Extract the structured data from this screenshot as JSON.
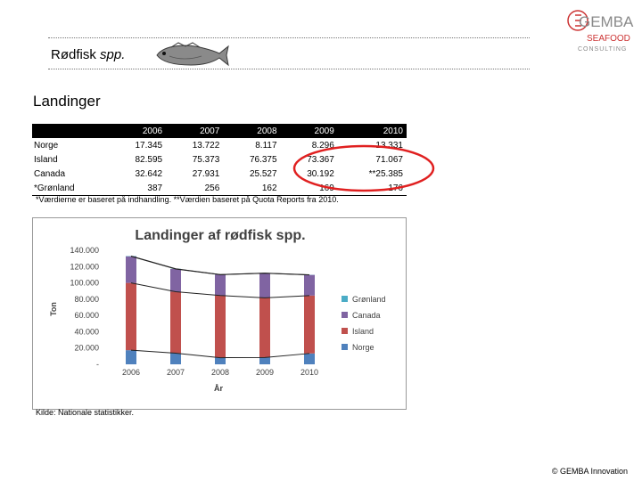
{
  "slide": {
    "species_name": "Rødfisk",
    "species_suffix": "spp.",
    "heading": "Landinger",
    "footnote": "*Værdierne er baseret på indhandling. **Værdien baseret på Quota Reports fra 2010.",
    "source": "Kilde: Nationale statistikker.",
    "copyright": "© GEMBA Innovation"
  },
  "logo": {
    "line1": "GEMBA",
    "line2": "SEAFOOD",
    "line3": "CONSULTING"
  },
  "table": {
    "headers": [
      "",
      "2006",
      "2007",
      "2008",
      "2009",
      "2010"
    ],
    "rows": [
      {
        "country": "Norge",
        "values": [
          "17.345",
          "13.722",
          "8.117",
          "8.296",
          "13.331"
        ]
      },
      {
        "country": "Island",
        "values": [
          "82.595",
          "75.373",
          "76.375",
          "73.367",
          "71.067"
        ]
      },
      {
        "country": "Canada",
        "values": [
          "32.642",
          "27.931",
          "25.527",
          "30.192",
          "**25.385"
        ]
      },
      {
        "country": "*Grønland",
        "values": [
          "387",
          "256",
          "162",
          "169",
          "176"
        ]
      }
    ]
  },
  "colors": {
    "norge": "#4f81bd",
    "island": "#c0504d",
    "canada": "#8064a2",
    "gronland": "#4bacc6",
    "highlight": "#e02020"
  },
  "chart_data": {
    "type": "bar",
    "stacked": true,
    "title": "Landinger af rødfisk spp.",
    "xlabel": "År",
    "ylabel": "Ton",
    "categories": [
      "2006",
      "2007",
      "2008",
      "2009",
      "2010"
    ],
    "yticks": [
      "-",
      "20.000",
      "40.000",
      "60.000",
      "80.000",
      "100.000",
      "120.000",
      "140.000"
    ],
    "ylim": [
      0,
      140000
    ],
    "grid": false,
    "legend_position": "right",
    "series": [
      {
        "name": "Norge",
        "color": "#4f81bd",
        "values": [
          17345,
          13722,
          8117,
          8296,
          13331
        ]
      },
      {
        "name": "Island",
        "color": "#c0504d",
        "values": [
          82595,
          75373,
          76375,
          73367,
          71067
        ]
      },
      {
        "name": "Canada",
        "color": "#8064a2",
        "values": [
          32642,
          27931,
          25527,
          30192,
          25385
        ]
      },
      {
        "name": "Grønland",
        "color": "#4bacc6",
        "values": [
          387,
          256,
          162,
          169,
          176
        ]
      }
    ]
  }
}
